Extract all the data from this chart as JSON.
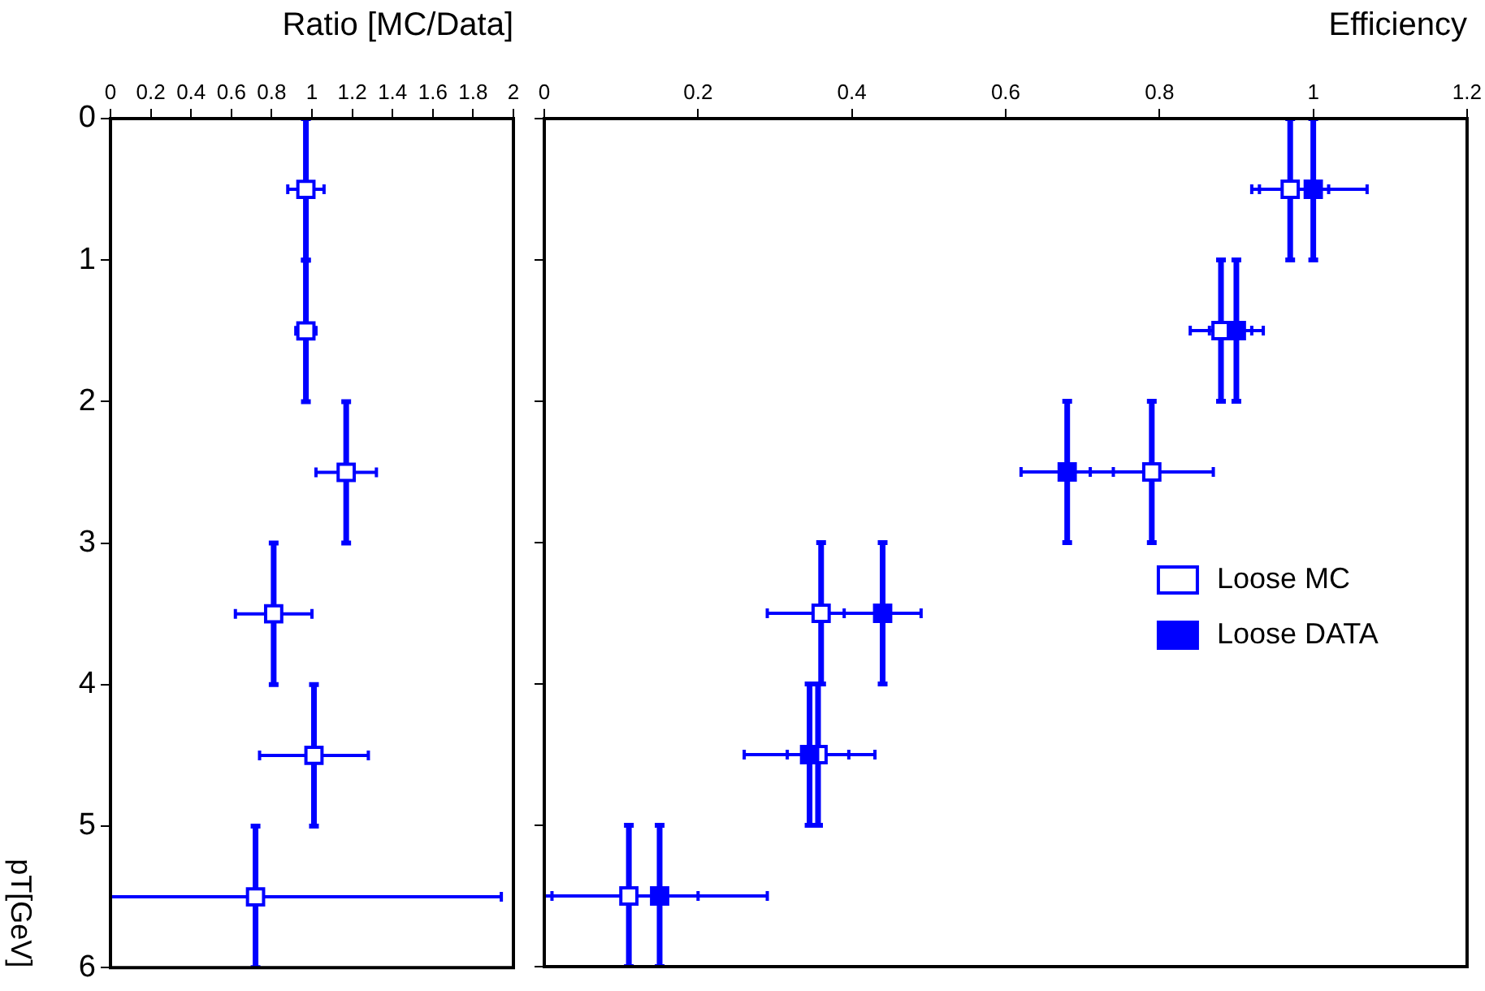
{
  "chart_data": [
    {
      "type": "scatter",
      "xlabel": "Ratio [MC/Data]",
      "ylabel": "pT[GeV]",
      "xlim": [
        0,
        2
      ],
      "xticks": [
        0,
        0.2,
        0.4,
        0.6,
        0.8,
        1,
        1.2,
        1.4,
        1.6,
        1.8,
        2
      ],
      "ylim": [
        6,
        0
      ],
      "yticks": [
        0,
        1,
        2,
        3,
        4,
        5,
        6
      ],
      "marker": "square",
      "series": [
        {
          "color": "#0000ff",
          "x": [
            0.97,
            0.97,
            1.17,
            0.81,
            1.01,
            0.72
          ],
          "values": [
            0.5,
            1.5,
            2.5,
            3.5,
            4.5,
            5.5
          ],
          "errors": [
            0.5,
            0.5,
            0.5,
            0.5,
            0.5,
            0.5
          ],
          "xerrors": [
            0.09,
            0.05,
            0.15,
            0.19,
            0.27,
            [
              0,
              1.94
            ]
          ]
        }
      ]
    },
    {
      "type": "scatter",
      "xlabel": "Efficiency",
      "xlim": [
        0,
        1.2
      ],
      "xticks": [
        0,
        0.2,
        0.4,
        0.6,
        0.8,
        1,
        1.2
      ],
      "ylim": [
        6,
        0
      ],
      "yticks": [
        0,
        1,
        2,
        3,
        4,
        5,
        6
      ],
      "tick_labels": "x",
      "legend": "right",
      "marker": "square",
      "series": [
        {
          "name": "Loose MC",
          "color": "#0000ff",
          "x": [
            0.97,
            0.88,
            0.79,
            0.36,
            0.356,
            0.11
          ],
          "values": [
            0.5,
            1.5,
            2.5,
            3.5,
            4.5,
            5.5
          ],
          "errors": [
            0.5,
            0.5,
            0.5,
            0.5,
            0.5,
            0.5
          ],
          "xerrors": [
            0.05,
            0.04,
            0.08,
            0.07,
            0.04,
            [
              0,
              0.2
            ]
          ]
        },
        {
          "name": "Loose DATA",
          "color": "#0000ff",
          "x": [
            1.0,
            0.9,
            0.68,
            0.44,
            0.345,
            0.15
          ],
          "values": [
            0.5,
            1.5,
            2.5,
            3.5,
            4.5,
            5.5
          ],
          "errors": [
            0.5,
            0.5,
            0.5,
            0.5,
            0.5,
            0.5
          ],
          "xerrors": [
            0.07,
            0.035,
            0.06,
            0.05,
            0.085,
            0.14
          ]
        }
      ]
    }
  ]
}
